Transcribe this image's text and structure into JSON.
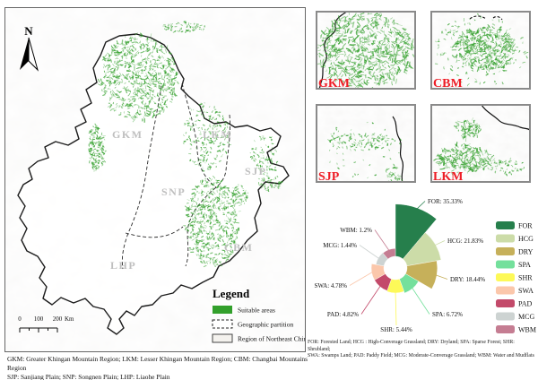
{
  "figure": {
    "suitable_color": "#33a02c",
    "main_map": {
      "north_label": "N",
      "region_labels": [
        "GKM",
        "LKM",
        "SJP",
        "SNP",
        "CBM",
        "LHP"
      ],
      "legend": {
        "title": "Legend",
        "items": [
          {
            "label": "Suitable areas",
            "swatch": "green-fill"
          },
          {
            "label": "Geographic partition",
            "swatch": "dashed-outline"
          },
          {
            "label": "Region of Northeast China",
            "swatch": "solid-outline"
          }
        ]
      },
      "scale_bar": {
        "ticks": [
          "0",
          "100",
          "200"
        ],
        "unit": "Km"
      }
    },
    "insets": [
      {
        "label": "GKM"
      },
      {
        "label": "CBM"
      },
      {
        "label": "SJP"
      },
      {
        "label": "LKM"
      }
    ],
    "footnote_left_line1": "GKM:  Greater Khingan Mountain Region; LKM: Lesser Khingan Mountain Region; CBM: Changbai Mountains Region",
    "footnote_left_line2": "SJP: Sanjiang Plain; SNP: Songnen Plain; LHP: Liaohe Plain",
    "footnote_right_line1": "FOR: Forested Land; HCG : High-Converage Grassland; DRY: Dryland; SPA: Sparse Forest; SHR: Shrubland;",
    "footnote_right_line2": "SWA: Swamps Land; PAD: Paddy Field; MCG: Moderate-Converage Grassland; WBM: Water and Mudflats"
  },
  "chart_data": {
    "type": "rose",
    "note": "Nightingale rose / variable-radius pie: equal 40-degree sectors, radius proportional to value, white donut hole",
    "angle_per_slice_deg": 40,
    "legend_position": "right",
    "categories": [
      "FOR",
      "HCG",
      "DRY",
      "SPA",
      "SHR",
      "PAD",
      "SWA",
      "MCG",
      "WBM"
    ],
    "values": [
      35.33,
      21.83,
      18.44,
      6.72,
      5.44,
      4.82,
      4.78,
      1.44,
      1.2
    ],
    "slices": [
      {
        "id": "FOR",
        "value": 35.33,
        "display": "FOR: 35.33%",
        "color": "#267f4c"
      },
      {
        "id": "HCG",
        "value": 21.83,
        "display": "HCG: 21.83%",
        "color": "#ccdca8"
      },
      {
        "id": "DRY",
        "value": 18.44,
        "display": "DRY: 18.44%",
        "color": "#c6b05a"
      },
      {
        "id": "SPA",
        "value": 6.72,
        "display": "SPA: 6.72%",
        "color": "#74e09c"
      },
      {
        "id": "SHR",
        "value": 5.44,
        "display": "SHR: 5.44%",
        "color": "#fdf958"
      },
      {
        "id": "PAD",
        "value": 4.82,
        "display": "PAD: 4.82%",
        "color": "#c34a6a"
      },
      {
        "id": "SWA",
        "value": 4.78,
        "display": "SWA: 4.78%",
        "color": "#fbc7ab"
      },
      {
        "id": "MCG",
        "value": 1.44,
        "display": "MCG: 1.44%",
        "color": "#cdd3d2"
      },
      {
        "id": "WBM",
        "value": 1.2,
        "display": "WBM: 1.2%",
        "color": "#c57d92"
      }
    ],
    "legend_order": [
      "FOR",
      "HCG",
      "DRY",
      "SPA",
      "SHR",
      "SWA",
      "PAD",
      "MCG",
      "WBM"
    ]
  }
}
